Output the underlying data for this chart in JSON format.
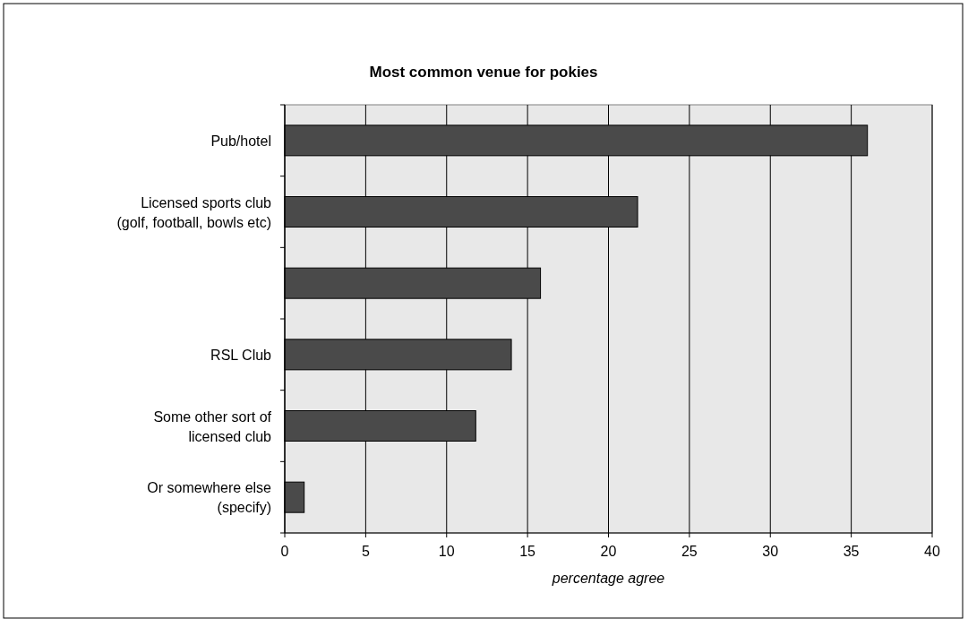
{
  "chart_data": {
    "type": "bar",
    "orientation": "horizontal",
    "title": "Most common venue for pokies",
    "xlabel": "percentage agree",
    "categories": [
      "Pub/hotel",
      "Licensed sports club\n(golf, football, bowls etc)",
      null,
      "RSL Club",
      "Some other sort of\nlicensed club",
      "Or somewhere else\n(specify)"
    ],
    "values": [
      36.0,
      21.8,
      15.8,
      14.0,
      11.8,
      1.2
    ],
    "color": "#4a4a4a",
    "xlim": [
      0,
      40
    ],
    "xticks": [
      0,
      5,
      10,
      15,
      20,
      25,
      30,
      35,
      40
    ],
    "grid": "x"
  }
}
